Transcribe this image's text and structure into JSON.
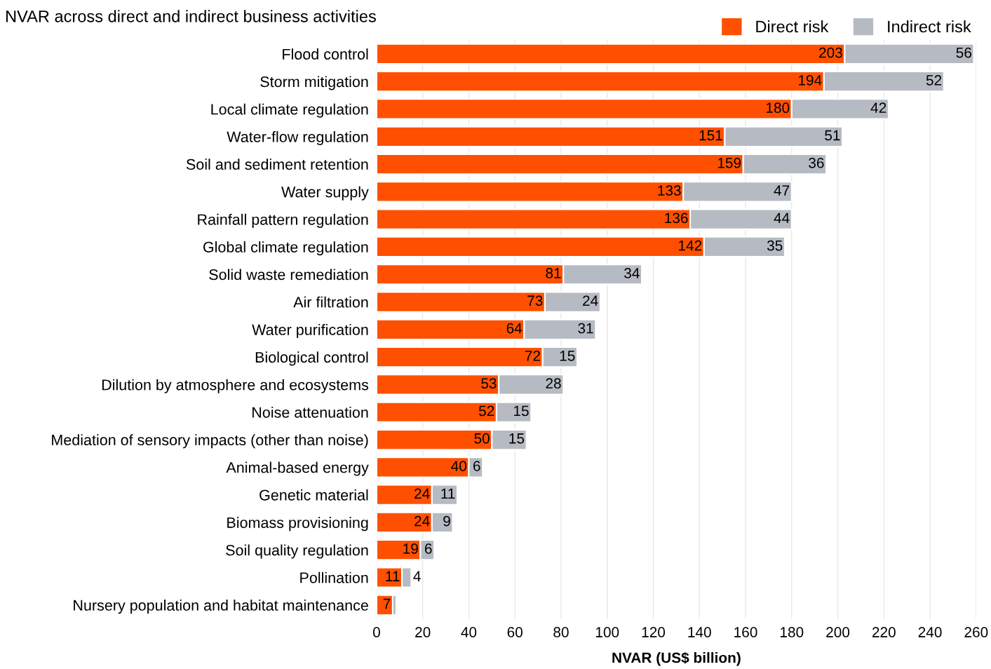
{
  "chart_data": {
    "type": "bar",
    "orientation": "horizontal",
    "stacked": true,
    "title": "NVAR across direct and indirect business activities",
    "xlabel": "NVAR (US$ billion)",
    "categories": [
      "Flood control",
      "Storm mitigation",
      "Local climate regulation",
      "Water-flow regulation",
      "Soil and sediment retention",
      "Water supply",
      "Rainfall pattern regulation",
      "Global climate regulation",
      "Solid waste remediation",
      "Air filtration",
      "Water purification",
      "Biological control",
      "Dilution by atmosphere and ecosystems",
      "Noise attenuation",
      "Mediation of sensory impacts (other than noise)",
      "Animal-based energy",
      "Genetic material",
      "Biomass provisioning",
      "Soil quality regulation",
      "Pollination",
      "Nursery population and habitat maintenance"
    ],
    "series": [
      {
        "name": "Direct risk",
        "color": "#fe5000",
        "values": [
          203,
          194,
          180,
          151,
          159,
          133,
          136,
          142,
          81,
          73,
          64,
          72,
          53,
          52,
          50,
          40,
          24,
          24,
          19,
          11,
          7
        ],
        "value_labels": [
          "203",
          "194",
          "180",
          "151",
          "159",
          "133",
          "136",
          "142",
          "81",
          "73",
          "64",
          "72",
          "53",
          "52",
          "50",
          "40",
          "24",
          "24",
          "19",
          "11",
          "7"
        ]
      },
      {
        "name": "Indirect risk",
        "color": "#b6bbc3",
        "values": [
          56,
          52,
          42,
          51,
          36,
          47,
          44,
          35,
          34,
          24,
          31,
          15,
          28,
          15,
          15,
          6,
          11,
          9,
          6,
          4,
          1.5
        ],
        "value_labels": [
          "56",
          "52",
          "42",
          "51",
          "36",
          "47",
          "44",
          "35",
          "34",
          "24",
          "31",
          "15",
          "28",
          "15",
          "15",
          "6",
          "11",
          "9",
          "6",
          "4",
          null
        ]
      }
    ],
    "xlim": [
      0,
      260
    ],
    "xticks": [
      0,
      20,
      40,
      60,
      80,
      100,
      120,
      140,
      160,
      180,
      200,
      220,
      240,
      260
    ],
    "grid": "x",
    "legend": "top right"
  }
}
